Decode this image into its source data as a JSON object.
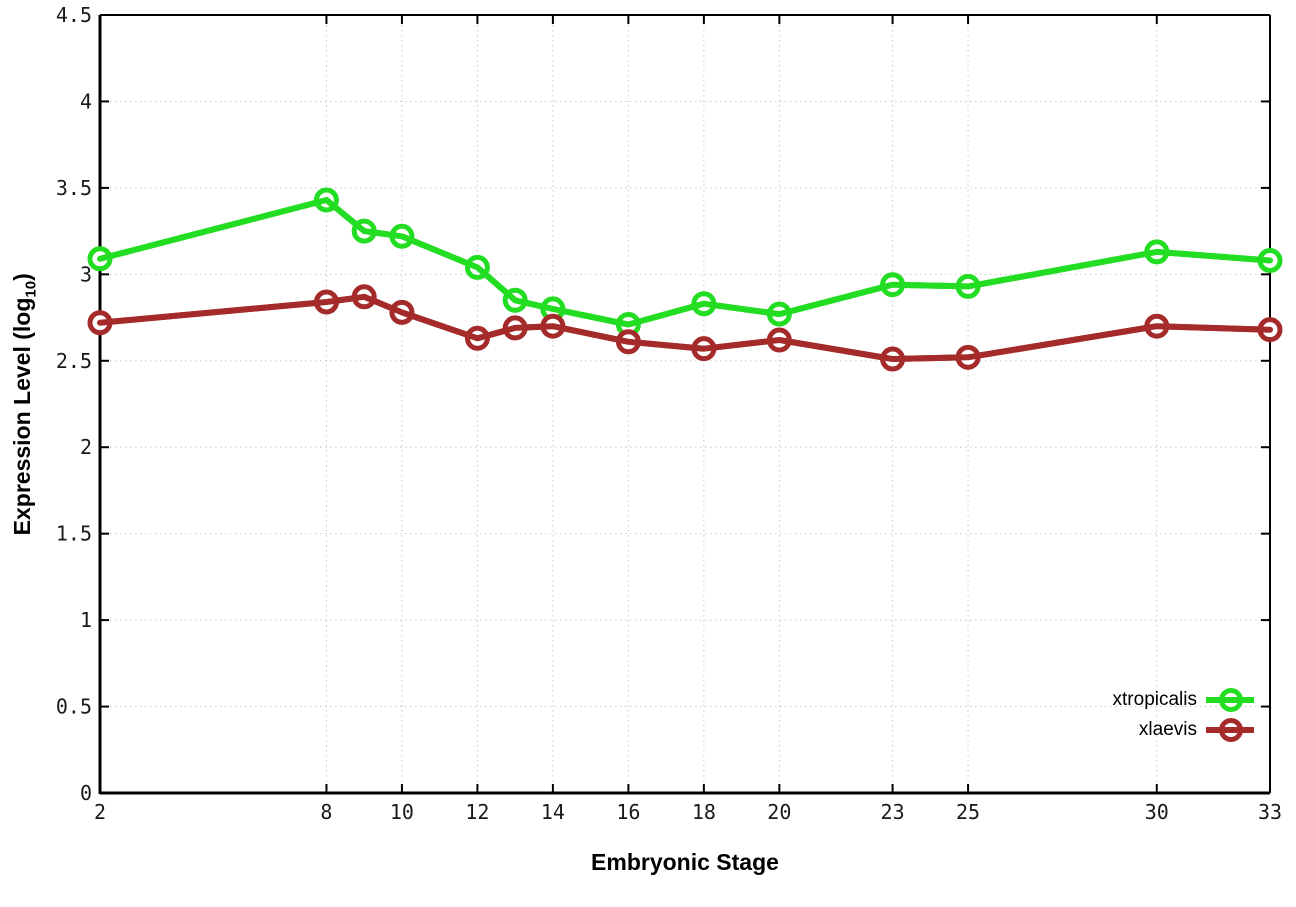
{
  "chart_data": {
    "type": "line",
    "title": "",
    "xlabel": "Embryonic Stage",
    "ylabel": "Expression Level (log10)",
    "ylabel_parts": {
      "main": "Expression Level (log",
      "sub": "10",
      "close": ")"
    },
    "xlim": [
      2,
      33
    ],
    "ylim": [
      0,
      4.5
    ],
    "grid": true,
    "legend_position": "bottom-right-inside",
    "x_ticks": [
      [
        2,
        "2"
      ],
      [
        8,
        "8"
      ],
      [
        10,
        "10"
      ],
      [
        12,
        "12"
      ],
      [
        14,
        "14"
      ],
      [
        16,
        "16"
      ],
      [
        18,
        "18"
      ],
      [
        20,
        "20"
      ],
      [
        23,
        "23"
      ],
      [
        25,
        "25"
      ],
      [
        30,
        "30"
      ],
      [
        33,
        "33"
      ]
    ],
    "y_ticks": [
      [
        0,
        "0"
      ],
      [
        0.5,
        "0.5"
      ],
      [
        1,
        "1"
      ],
      [
        1.5,
        "1.5"
      ],
      [
        2,
        "2"
      ],
      [
        2.5,
        "2.5"
      ],
      [
        3,
        "3"
      ],
      [
        3.5,
        "3.5"
      ],
      [
        4,
        "4"
      ],
      [
        4.5,
        "4.5"
      ]
    ],
    "categories": [
      2,
      8,
      9,
      10,
      12,
      13,
      14,
      16,
      18,
      20,
      23,
      25,
      30,
      33
    ],
    "series": [
      {
        "name": "xtropicalis",
        "color": "#22dd22",
        "values": [
          3.09,
          3.43,
          3.25,
          3.22,
          3.04,
          2.85,
          2.8,
          2.71,
          2.83,
          2.77,
          2.94,
          2.93,
          3.13,
          3.08
        ]
      },
      {
        "name": "xlaevis",
        "color": "#a52a2a",
        "values": [
          2.72,
          2.84,
          2.87,
          2.78,
          2.63,
          2.69,
          2.7,
          2.61,
          2.57,
          2.62,
          2.51,
          2.52,
          2.7,
          2.68
        ]
      }
    ]
  }
}
